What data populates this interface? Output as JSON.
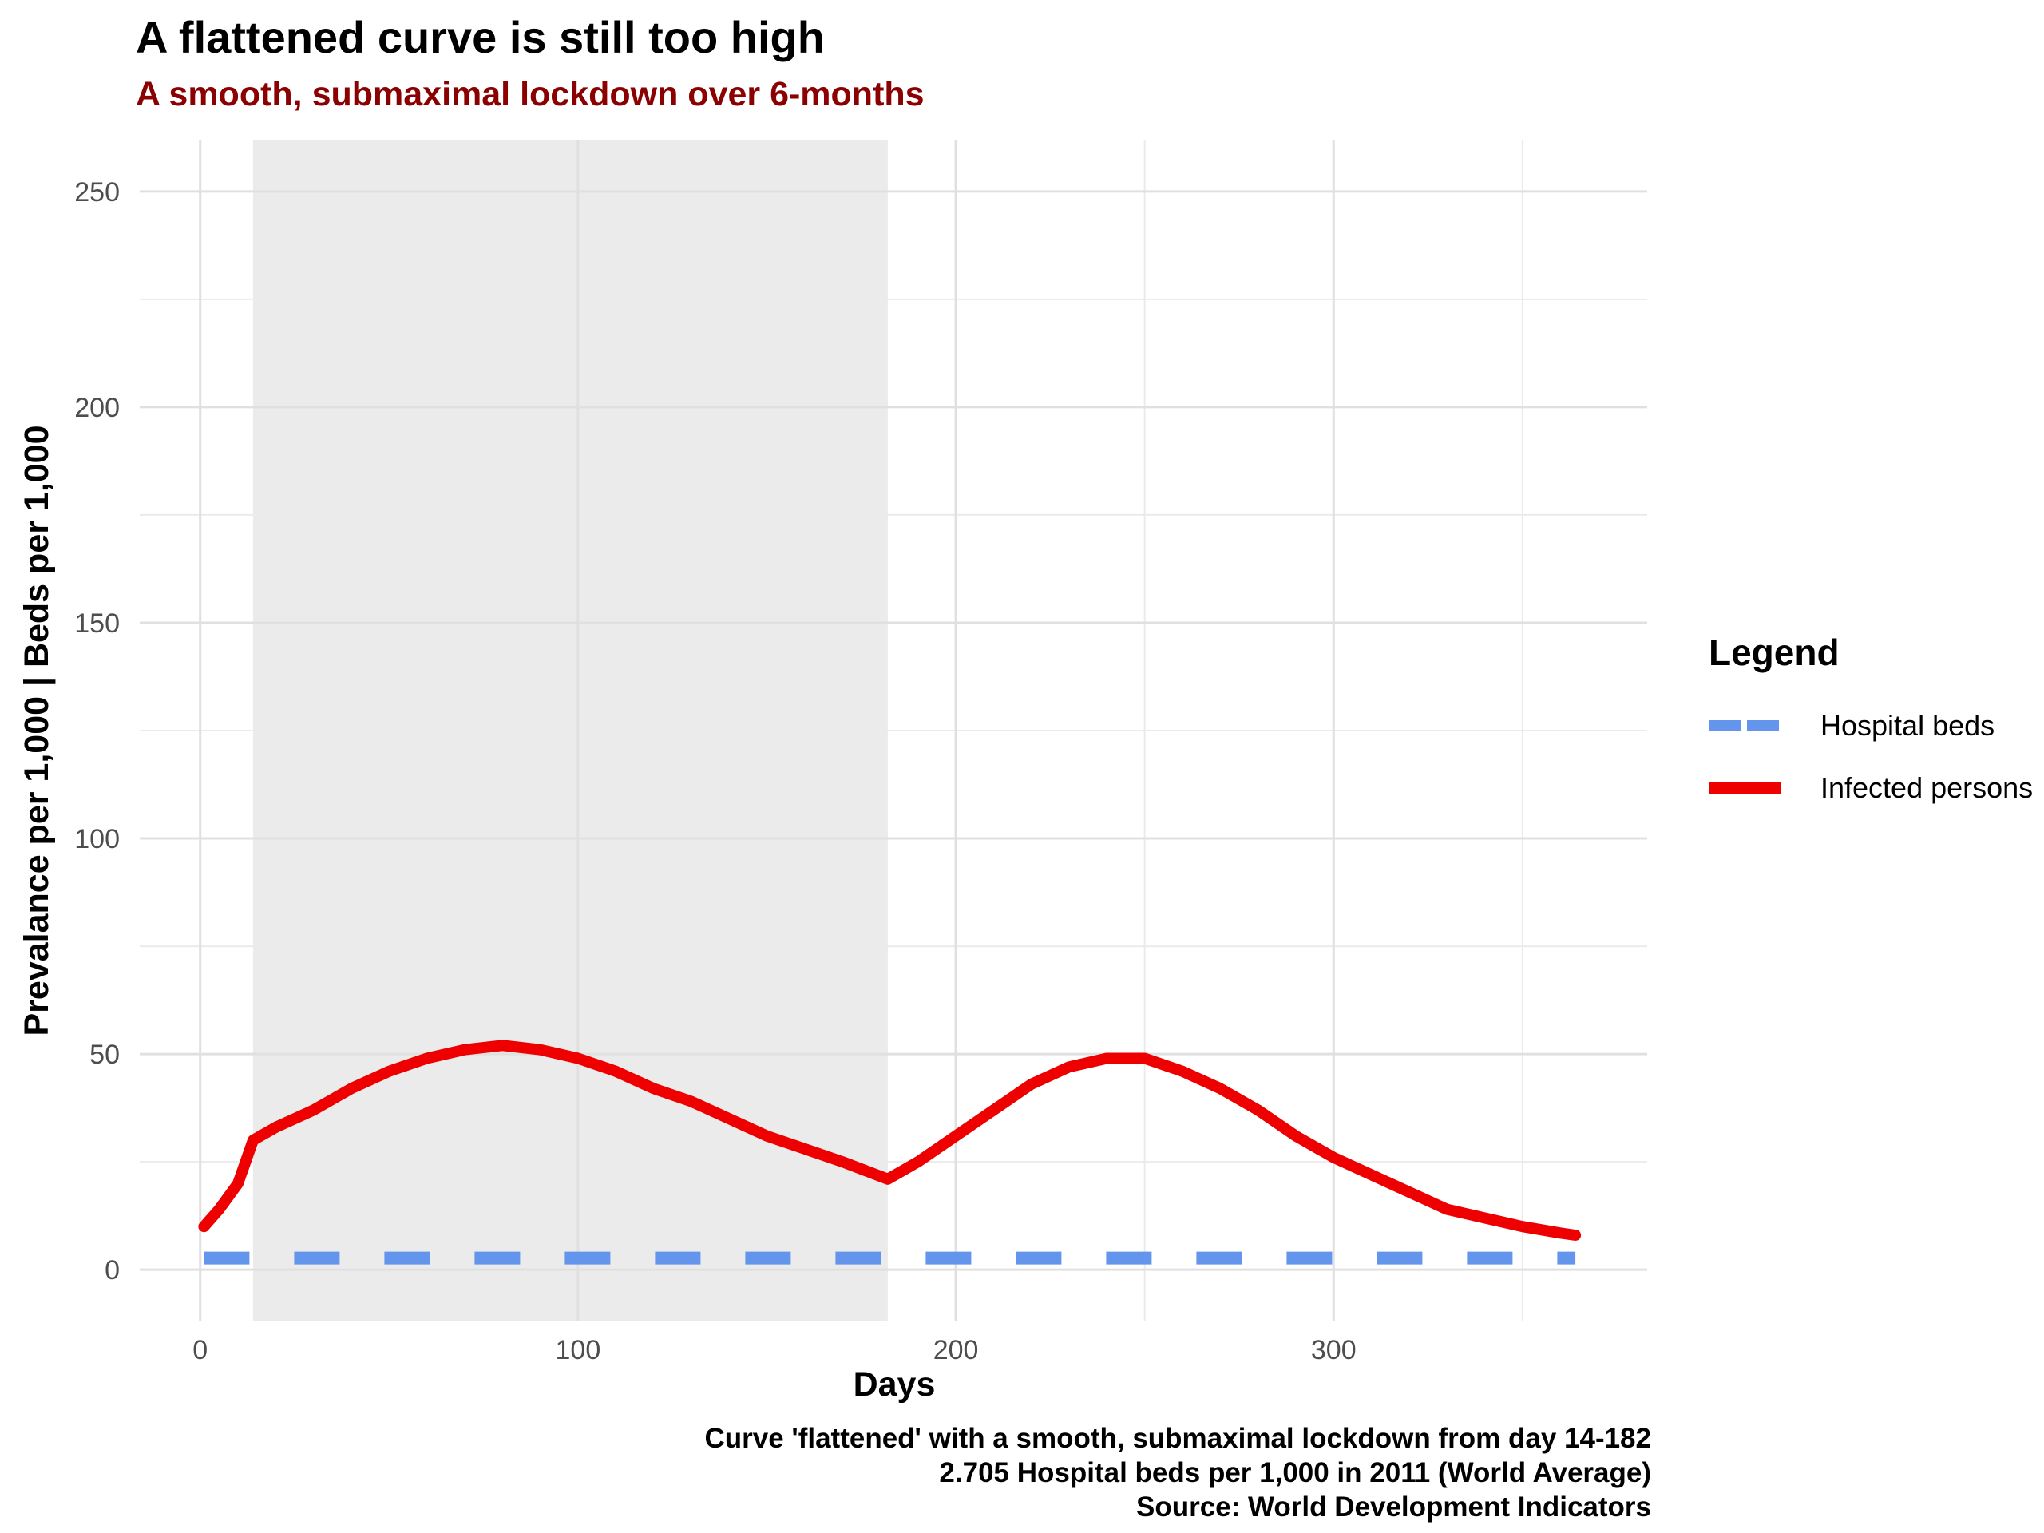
{
  "title": "A flattened curve is still too high",
  "subtitle": "A smooth, submaximal lockdown over 6-months",
  "caption": [
    "Curve 'flattened' with a smooth, submaximal lockdown from day 14-182",
    "2.705 Hospital beds per 1,000 in 2011 (World Average)",
    "Source: World Development Indicators"
  ],
  "legend": {
    "title": "Legend",
    "items": [
      {
        "label": "Hospital beds",
        "color": "#6495ed",
        "style": "dashed"
      },
      {
        "label": "Infected persons",
        "color": "#ee0000",
        "style": "solid"
      }
    ]
  },
  "chart_data": {
    "type": "line",
    "title": "A flattened curve is still too high",
    "subtitle": "A smooth, submaximal lockdown over 6-months",
    "xlabel": "Days",
    "ylabel": "Prevalance per 1,000 | Beds per 1,000",
    "xlim": [
      -16,
      383
    ],
    "ylim": [
      -12,
      262
    ],
    "x_ticks": [
      0,
      100,
      200,
      300
    ],
    "y_ticks": [
      0,
      50,
      100,
      150,
      200,
      250
    ],
    "grid": true,
    "legend_position": "right",
    "shaded_region": {
      "x_start": 14,
      "x_end": 182,
      "color": "#ebebeb"
    },
    "series": [
      {
        "name": "Hospital beds",
        "color": "#6495ed",
        "style": "dashed",
        "x": [
          1,
          364
        ],
        "y": [
          2.705,
          2.705
        ]
      },
      {
        "name": "Infected persons",
        "color": "#ee0000",
        "style": "solid",
        "x": [
          1,
          5,
          10,
          14,
          16,
          20,
          30,
          40,
          50,
          60,
          70,
          80,
          90,
          100,
          110,
          120,
          130,
          140,
          150,
          160,
          170,
          182,
          190,
          200,
          210,
          220,
          230,
          240,
          250,
          260,
          270,
          280,
          290,
          300,
          310,
          320,
          330,
          340,
          350,
          360,
          364
        ],
        "y": [
          10,
          14,
          20,
          30,
          31,
          33,
          37,
          42,
          46,
          49,
          51,
          52,
          51,
          49,
          46,
          42,
          39,
          35,
          31,
          28,
          25,
          21,
          25,
          31,
          37,
          43,
          47,
          49,
          49,
          46,
          42,
          37,
          31,
          26,
          22,
          18,
          14,
          12,
          10,
          8.5,
          8
        ]
      }
    ]
  }
}
